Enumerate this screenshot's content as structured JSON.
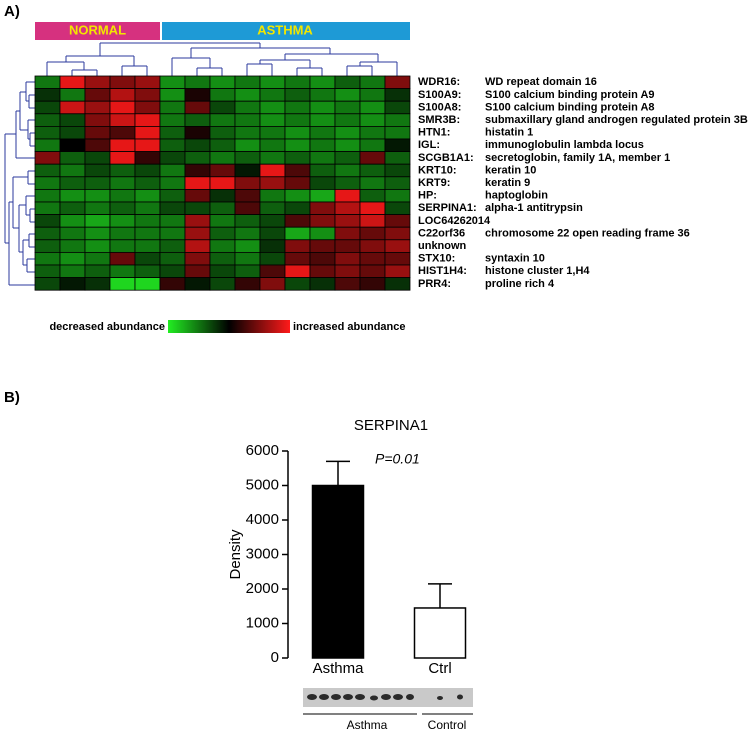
{
  "chart_data": [
    {
      "type": "heatmap",
      "panel": "A)",
      "groups": [
        {
          "name": "NORMAL",
          "color": "#d6317f",
          "columns": 5
        },
        {
          "name": "ASTHMA",
          "color": "#1e9ad6",
          "columns": 10
        }
      ],
      "zlim": [
        -1,
        1
      ],
      "colorscale": {
        "low_label": "decreased abundance",
        "high_label": "increased abundance",
        "colors": [
          "#22ee22",
          "#000000",
          "#ff1a1a"
        ]
      },
      "rows": [
        {
          "symbol": "WDR16:",
          "name": "WD repeat domain 16",
          "values": [
            -0.5,
            0.9,
            0.6,
            0.5,
            0.6,
            -0.6,
            -0.5,
            -0.6,
            -0.5,
            -0.6,
            -0.5,
            -0.6,
            -0.4,
            -0.5,
            0.5
          ]
        },
        {
          "symbol": "S100A9:",
          "name": "S100 calcium binding protein A9",
          "values": [
            -0.2,
            -0.5,
            0.4,
            0.7,
            0.5,
            -0.6,
            0.1,
            -0.5,
            -0.6,
            -0.5,
            -0.4,
            -0.5,
            -0.6,
            -0.5,
            -0.2
          ]
        },
        {
          "symbol": "S100A8:",
          "name": "S100 calcium binding protein A8",
          "values": [
            -0.3,
            0.8,
            0.6,
            0.9,
            0.5,
            -0.5,
            0.4,
            -0.3,
            -0.5,
            -0.6,
            -0.5,
            -0.6,
            -0.5,
            -0.6,
            -0.3
          ]
        },
        {
          "symbol": "SMR3B:",
          "name": "submaxillary gland androgen regulated protein 3B",
          "values": [
            -0.4,
            -0.3,
            0.5,
            0.8,
            0.9,
            -0.5,
            -0.4,
            -0.5,
            -0.5,
            -0.6,
            -0.5,
            -0.6,
            -0.5,
            -0.6,
            -0.5
          ]
        },
        {
          "symbol": "HTN1:",
          "name": "histatin 1",
          "values": [
            -0.4,
            -0.3,
            0.4,
            0.3,
            0.9,
            -0.4,
            0.1,
            -0.4,
            -0.5,
            -0.5,
            -0.6,
            -0.5,
            -0.6,
            -0.5,
            -0.5
          ]
        },
        {
          "symbol": "IGL:",
          "name": "immunoglobulin lambda locus",
          "values": [
            -0.5,
            0.0,
            0.3,
            0.9,
            0.9,
            -0.4,
            -0.3,
            -0.4,
            -0.6,
            -0.5,
            -0.6,
            -0.5,
            -0.6,
            -0.5,
            -0.1
          ]
        },
        {
          "symbol": "SCGB1A1:",
          "name": "secretoglobin, family 1A, member 1",
          "values": [
            0.5,
            -0.4,
            -0.3,
            0.9,
            0.2,
            -0.3,
            -0.4,
            -0.5,
            -0.4,
            -0.5,
            -0.4,
            -0.5,
            -0.4,
            0.4,
            -0.4
          ]
        },
        {
          "symbol": "KRT10:",
          "name": "keratin 10",
          "values": [
            -0.4,
            -0.5,
            -0.3,
            -0.4,
            -0.3,
            -0.5,
            0.2,
            0.4,
            -0.1,
            0.9,
            0.3,
            -0.4,
            -0.5,
            -0.4,
            -0.3
          ]
        },
        {
          "symbol": "KRT9:",
          "name": "keratin 9",
          "values": [
            -0.5,
            -0.4,
            -0.4,
            -0.5,
            -0.4,
            -0.5,
            0.9,
            0.9,
            0.5,
            0.6,
            0.4,
            -0.3,
            -0.4,
            -0.5,
            -0.4
          ]
        },
        {
          "symbol": "HP:",
          "name": "haptoglobin",
          "values": [
            -0.5,
            -0.6,
            -0.6,
            -0.5,
            -0.6,
            -0.4,
            0.4,
            -0.2,
            0.3,
            -0.5,
            -0.6,
            -0.7,
            0.9,
            -0.4,
            -0.5
          ]
        },
        {
          "symbol": "SERPINA1:",
          "name": "alpha-1 antitrypsin",
          "values": [
            -0.5,
            -0.4,
            -0.5,
            -0.4,
            -0.5,
            -0.3,
            -0.3,
            -0.4,
            0.3,
            -0.4,
            -0.3,
            0.5,
            0.7,
            0.9,
            -0.3
          ]
        },
        {
          "symbol": "LOC64262014",
          "values": [
            -0.3,
            -0.6,
            -0.7,
            -0.6,
            -0.5,
            -0.5,
            0.6,
            -0.5,
            -0.4,
            -0.3,
            0.3,
            0.5,
            0.6,
            0.8,
            0.4
          ]
        },
        {
          "symbol": "C22orf36",
          "name": "chromosome 22 open reading frame 36",
          "values": [
            -0.4,
            -0.5,
            -0.6,
            -0.5,
            -0.5,
            -0.5,
            0.6,
            -0.4,
            -0.5,
            -0.3,
            -0.7,
            -0.6,
            0.5,
            0.4,
            0.5
          ]
        },
        {
          "symbol": "unknown",
          "values": [
            -0.4,
            -0.5,
            -0.6,
            -0.5,
            -0.5,
            -0.4,
            0.7,
            -0.5,
            -0.6,
            -0.2,
            0.5,
            0.4,
            0.4,
            0.5,
            0.6
          ]
        },
        {
          "symbol": "STX10:",
          "name": "syntaxin 10",
          "values": [
            -0.5,
            -0.6,
            -0.5,
            0.4,
            -0.3,
            -0.4,
            0.5,
            -0.4,
            -0.5,
            -0.3,
            0.4,
            0.3,
            0.5,
            0.4,
            0.4
          ]
        },
        {
          "symbol": "HIST1H4:",
          "name": "histone cluster 1,H4",
          "values": [
            -0.4,
            -0.5,
            -0.4,
            -0.5,
            -0.4,
            -0.3,
            0.4,
            -0.3,
            -0.4,
            0.3,
            0.9,
            0.4,
            0.5,
            0.4,
            0.6
          ]
        },
        {
          "symbol": "PRR4:",
          "name": "proline rich 4",
          "values": [
            -0.3,
            -0.1,
            -0.2,
            -0.9,
            -0.9,
            0.2,
            -0.1,
            -0.3,
            0.2,
            0.5,
            -0.3,
            -0.2,
            0.3,
            0.2,
            -0.2
          ]
        }
      ]
    },
    {
      "type": "bar",
      "panel": "B)",
      "title": "SERPINA1",
      "y_label": "Density",
      "annotation": "P=0.01",
      "categories": [
        "Asthma",
        "Ctrl"
      ],
      "values": [
        5000,
        1450
      ],
      "errors": [
        700,
        700
      ],
      "colors": [
        "#000000",
        "#ffffff"
      ],
      "ylim": [
        0,
        6000
      ],
      "yticks": [
        0,
        1000,
        2000,
        3000,
        4000,
        5000,
        6000
      ],
      "blot_labels": [
        "Asthma",
        "Control"
      ]
    }
  ]
}
